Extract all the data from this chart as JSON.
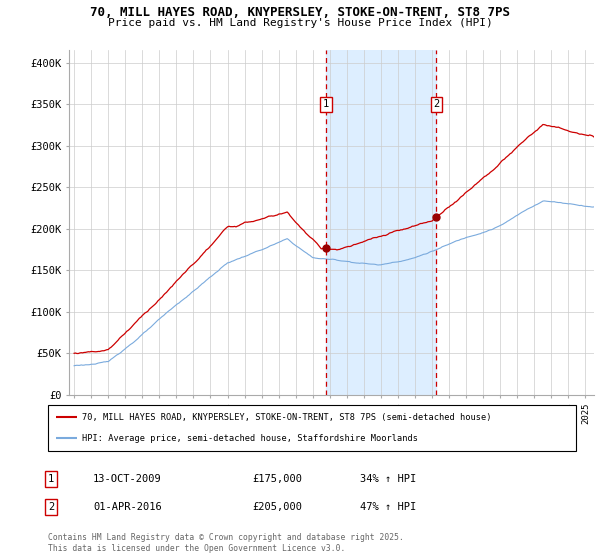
{
  "title_line1": "70, MILL HAYES ROAD, KNYPERSLEY, STOKE-ON-TRENT, ST8 7PS",
  "title_line2": "Price paid vs. HM Land Registry's House Price Index (HPI)",
  "ylabel_ticks": [
    "£0",
    "£50K",
    "£100K",
    "£150K",
    "£200K",
    "£250K",
    "£300K",
    "£350K",
    "£400K"
  ],
  "ytick_values": [
    0,
    50000,
    100000,
    150000,
    200000,
    250000,
    300000,
    350000,
    400000
  ],
  "ylim": [
    0,
    415000
  ],
  "xlim_start": 1994.7,
  "xlim_end": 2025.5,
  "transaction1_date": "13-OCT-2009",
  "transaction1_price": 175000,
  "transaction1_hpi": "34% ↑ HPI",
  "transaction1_x": 2009.79,
  "transaction2_date": "01-APR-2016",
  "transaction2_price": 205000,
  "transaction2_hpi": "47% ↑ HPI",
  "transaction2_x": 2016.25,
  "line1_color": "#cc0000",
  "line2_color": "#7aaadd",
  "dot_color": "#990000",
  "shaded_region_color": "#ddeeff",
  "vline_color": "#cc0000",
  "legend_line1": "70, MILL HAYES ROAD, KNYPERSLEY, STOKE-ON-TRENT, ST8 7PS (semi-detached house)",
  "legend_line2": "HPI: Average price, semi-detached house, Staffordshire Moorlands",
  "footnote": "Contains HM Land Registry data © Crown copyright and database right 2025.\nThis data is licensed under the Open Government Licence v3.0.",
  "background_color": "#ffffff",
  "grid_color": "#cccccc",
  "marker_y": 350000
}
